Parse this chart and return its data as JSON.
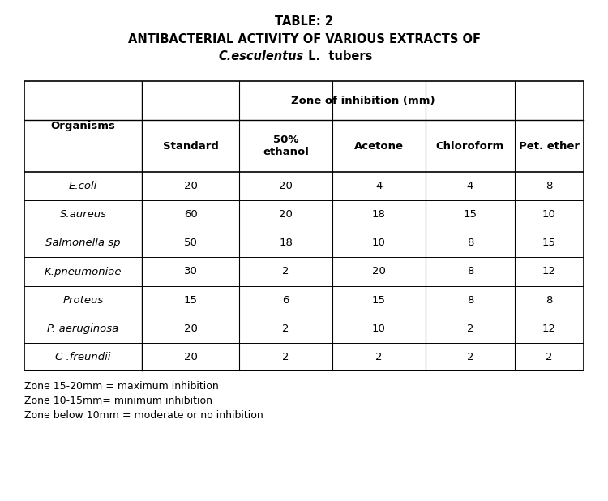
{
  "title_line1": "TABLE: 2",
  "title_line2": "ANTIBACTERIAL ACTIVITY OF VARIOUS EXTRACTS OF",
  "title_line3_italic": "C.esculentus",
  "title_line3_normal": " L.  tubers",
  "header_col": "Organisms",
  "zone_header": "Zone of inhibition (mm)",
  "col_headers": [
    "Standard",
    "50%\nethanol",
    "Acetone",
    "Chloroform",
    "Pet. ether"
  ],
  "organisms": [
    "E.coli",
    "S.aureus",
    "Salmonella sp",
    "K.pneumoniae",
    "Proteus",
    "P. aeruginosa",
    "C .freundii"
  ],
  "data": [
    [
      20,
      20,
      4,
      4,
      8
    ],
    [
      60,
      20,
      18,
      15,
      10
    ],
    [
      50,
      18,
      10,
      8,
      15
    ],
    [
      30,
      2,
      20,
      8,
      12
    ],
    [
      15,
      6,
      15,
      8,
      8
    ],
    [
      20,
      2,
      10,
      2,
      12
    ],
    [
      20,
      2,
      2,
      2,
      2
    ]
  ],
  "footnotes": [
    "Zone 15-20mm = maximum inhibition",
    "Zone 10-15mm= minimum inhibition",
    "Zone below 10mm = moderate or no inhibition"
  ],
  "bg_color": "#ffffff",
  "text_color": "#000000",
  "title_fs": 10.5,
  "header_fs": 9.5,
  "data_fs": 9.5,
  "footnote_fs": 9.0
}
